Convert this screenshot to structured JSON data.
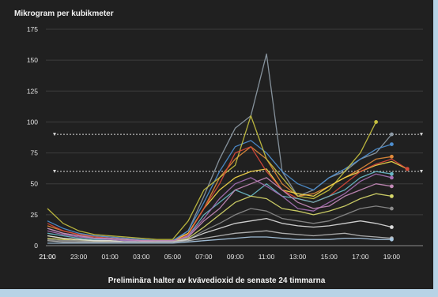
{
  "chart_data": {
    "type": "line",
    "title": "",
    "ylabel": "Mikrogram per kubikmeter",
    "xlabel": "Preliminära halter av kvävedioxid de senaste 24 timmarna",
    "ylim": [
      0,
      175
    ],
    "yticks": [
      0,
      25,
      50,
      75,
      100,
      125,
      150,
      175
    ],
    "x": [
      "21:00",
      "22:00",
      "23:00",
      "00:00",
      "01:00",
      "02:00",
      "03:00",
      "04:00",
      "05:00",
      "06:00",
      "07:00",
      "08:00",
      "09:00",
      "10:00",
      "11:00",
      "12:00",
      "13:00",
      "14:00",
      "15:00",
      "16:00",
      "17:00",
      "18:00",
      "19:00",
      "20:00",
      "21:00"
    ],
    "xticks": [
      "21:00",
      "23:00",
      "01:00",
      "03:00",
      "05:00",
      "07:00",
      "09:00",
      "11:00",
      "13:00",
      "15:00",
      "17:00",
      "19:00",
      "21:00"
    ],
    "grid": true,
    "reference_lines": [
      90,
      60
    ],
    "series": [
      {
        "color": "#8e9ba6",
        "values": [
          14,
          10,
          8,
          7,
          6,
          5,
          4,
          3,
          3,
          12,
          40,
          70,
          95,
          105,
          155,
          60,
          40,
          45,
          55,
          60,
          70,
          75,
          90,
          null,
          null
        ]
      },
      {
        "color": "#e08a3a",
        "values": [
          16,
          12,
          9,
          8,
          7,
          6,
          5,
          4,
          4,
          10,
          30,
          55,
          70,
          80,
          70,
          50,
          40,
          42,
          48,
          55,
          62,
          70,
          72,
          null,
          null
        ]
      },
      {
        "color": "#4e8fd0",
        "values": [
          20,
          14,
          10,
          8,
          7,
          6,
          5,
          4,
          4,
          12,
          35,
          60,
          80,
          85,
          75,
          60,
          50,
          45,
          55,
          62,
          70,
          78,
          82,
          null,
          null
        ]
      },
      {
        "color": "#c6c040",
        "values": [
          30,
          18,
          12,
          9,
          8,
          7,
          6,
          5,
          5,
          20,
          45,
          55,
          65,
          105,
          70,
          55,
          40,
          38,
          45,
          60,
          75,
          100,
          null,
          null,
          null
        ]
      },
      {
        "color": "#f4d84a",
        "values": [
          8,
          6,
          5,
          4,
          4,
          3,
          3,
          3,
          3,
          10,
          30,
          45,
          55,
          60,
          62,
          45,
          42,
          40,
          48,
          55,
          60,
          65,
          68,
          62,
          null
        ]
      },
      {
        "color": "#d8483a",
        "values": [
          18,
          12,
          9,
          7,
          6,
          5,
          4,
          3,
          3,
          9,
          30,
          50,
          75,
          80,
          60,
          45,
          38,
          35,
          40,
          50,
          60,
          66,
          70,
          62,
          null
        ]
      },
      {
        "color": "#69b8c6",
        "values": [
          10,
          8,
          6,
          5,
          5,
          4,
          3,
          3,
          3,
          8,
          25,
          35,
          45,
          40,
          50,
          40,
          38,
          35,
          40,
          45,
          55,
          60,
          58,
          null,
          null
        ]
      },
      {
        "color": "#a670b4",
        "values": [
          12,
          9,
          7,
          6,
          5,
          4,
          4,
          3,
          3,
          8,
          22,
          38,
          50,
          55,
          48,
          40,
          30,
          28,
          35,
          42,
          52,
          58,
          55,
          null,
          null
        ]
      },
      {
        "color": "#c48ab8",
        "values": [
          14,
          10,
          8,
          6,
          6,
          5,
          4,
          4,
          4,
          7,
          20,
          30,
          45,
          50,
          55,
          45,
          35,
          30,
          32,
          40,
          45,
          50,
          48,
          null,
          null
        ]
      },
      {
        "color": "#d7d86a",
        "values": [
          6,
          5,
          4,
          4,
          3,
          3,
          3,
          3,
          3,
          6,
          15,
          25,
          35,
          40,
          38,
          30,
          28,
          25,
          28,
          32,
          38,
          42,
          40,
          null,
          null
        ]
      },
      {
        "color": "#8c8c8c",
        "values": [
          5,
          4,
          4,
          3,
          3,
          3,
          3,
          3,
          3,
          5,
          12,
          18,
          25,
          30,
          28,
          22,
          20,
          18,
          20,
          25,
          30,
          32,
          30,
          null,
          null
        ]
      },
      {
        "color": "#dcdcdc",
        "values": [
          8,
          6,
          5,
          4,
          4,
          3,
          3,
          3,
          3,
          5,
          10,
          14,
          18,
          20,
          22,
          18,
          16,
          15,
          16,
          18,
          20,
          18,
          15,
          null,
          null
        ]
      },
      {
        "color": "#b8b8b8",
        "values": [
          4,
          3,
          3,
          3,
          3,
          3,
          3,
          3,
          3,
          4,
          6,
          8,
          10,
          11,
          12,
          10,
          9,
          8,
          9,
          10,
          8,
          7,
          6,
          null,
          null
        ]
      },
      {
        "color": "#a9c8e2",
        "values": [
          2,
          2,
          2,
          2,
          2,
          2,
          2,
          2,
          2,
          3,
          4,
          5,
          6,
          7,
          7,
          6,
          5,
          5,
          5,
          6,
          6,
          5,
          5,
          null,
          null
        ]
      }
    ]
  }
}
